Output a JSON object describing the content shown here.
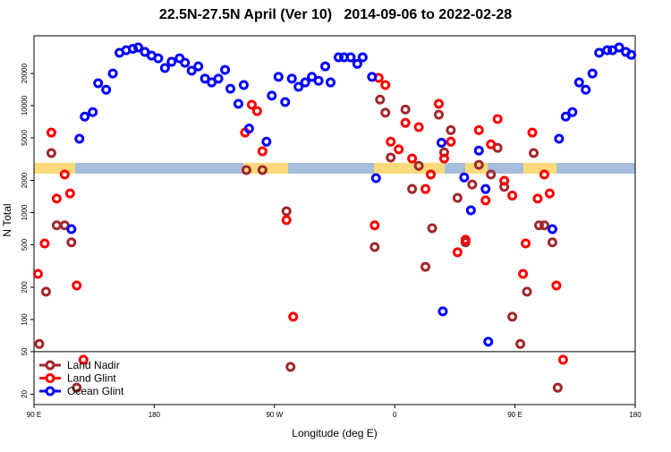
{
  "chart_data": {
    "type": "scatter",
    "title": "22.5N-27.5N April (Ver 10)   2014-09-06 to 2022-02-28",
    "x_label": "Longitude (deg E)",
    "y_label": "N Total",
    "log_y": true,
    "legend": "lower left",
    "xlim": [
      90,
      540
    ],
    "xticks": [
      {
        "value": 90,
        "label": "90 E"
      },
      180,
      {
        "value": 270,
        "label": "90 W"
      },
      {
        "value": 360,
        "label": "0"
      },
      {
        "value": 450,
        "label": "90 E"
      },
      {
        "value": 540,
        "label": "180"
      }
    ],
    "ylim": [
      16,
      45000
    ],
    "yticks": [
      20,
      50,
      100,
      200,
      500,
      1000,
      2000,
      5000,
      10000,
      20000
    ],
    "series": [
      {
        "name": "Land Nadir",
        "color": "#a0282d",
        "x": [
          94,
          99,
          103,
          107,
          113,
          118,
          122,
          249,
          261,
          279,
          282,
          345,
          349,
          353,
          357,
          368,
          373,
          378,
          383,
          388,
          393,
          397,
          402,
          407,
          413,
          418,
          423,
          432,
          437,
          442,
          448,
          454,
          459,
          464,
          468,
          472,
          478,
          482
        ],
        "values": [
          59,
          182,
          3600,
          760,
          760,
          527,
          23,
          2500,
          2500,
          1030,
          36,
          476,
          11400,
          8600,
          3270,
          9200,
          1660,
          2740,
          311,
          713,
          8240,
          3650,
          5900,
          1370,
          527,
          1830,
          2800,
          2270,
          4030,
          1740,
          106,
          59,
          182,
          3600,
          760,
          760,
          527,
          23
        ]
      },
      {
        "name": "Land Glint",
        "color": "#ff0000",
        "x": [
          93,
          98,
          103,
          107,
          113,
          117,
          122,
          127,
          248,
          253,
          257,
          261,
          279,
          284,
          345,
          348,
          353,
          357,
          363,
          368,
          373,
          378,
          383,
          387,
          393,
          397,
          402,
          407,
          413,
          423,
          428,
          432,
          437,
          442,
          448,
          456,
          458,
          463,
          467,
          472,
          476,
          481,
          486
        ],
        "values": [
          267,
          514,
          5600,
          1350,
          2270,
          1510,
          208,
          42,
          5600,
          10200,
          8900,
          3740,
          850,
          106,
          760,
          18200,
          15600,
          4600,
          3900,
          6900,
          3200,
          6300,
          1660,
          2270,
          10400,
          3200,
          4600,
          425,
          557,
          5900,
          1300,
          4350,
          7500,
          1980,
          1440,
          267,
          514,
          5600,
          1350,
          2270,
          1510,
          208,
          42
        ]
      },
      {
        "name": "Ocean Glint",
        "color": "#0000ff",
        "x": [
          118,
          124,
          128,
          134,
          138,
          144,
          149,
          154,
          159,
          164,
          168,
          173,
          178,
          183,
          188,
          193,
          199,
          203,
          208,
          213,
          218,
          223,
          228,
          233,
          237,
          243,
          247,
          251,
          264,
          268,
          273,
          278,
          283,
          288,
          293,
          298,
          303,
          308,
          312,
          318,
          322,
          327,
          332,
          336,
          343,
          346,
          395,
          396,
          412,
          417,
          423,
          428,
          430,
          478,
          483,
          488,
          493,
          498,
          503,
          508,
          513,
          519,
          523,
          528,
          533,
          537
        ],
        "values": [
          700,
          4900,
          7900,
          8700,
          16200,
          14100,
          20000,
          31200,
          33000,
          34000,
          35000,
          31800,
          29400,
          27700,
          22500,
          25700,
          27700,
          25200,
          21200,
          23300,
          17900,
          16500,
          17900,
          21600,
          14400,
          10400,
          15600,
          6100,
          4600,
          12400,
          18600,
          10800,
          17900,
          15000,
          16500,
          18600,
          17100,
          23300,
          16500,
          28300,
          28300,
          28300,
          24600,
          28300,
          18600,
          2100,
          4500,
          119,
          2130,
          1050,
          3800,
          1660,
          62,
          700,
          4900,
          7900,
          8700,
          16500,
          14100,
          20000,
          31200,
          33000,
          33000,
          35000,
          31800,
          29900
        ]
      }
    ]
  }
}
